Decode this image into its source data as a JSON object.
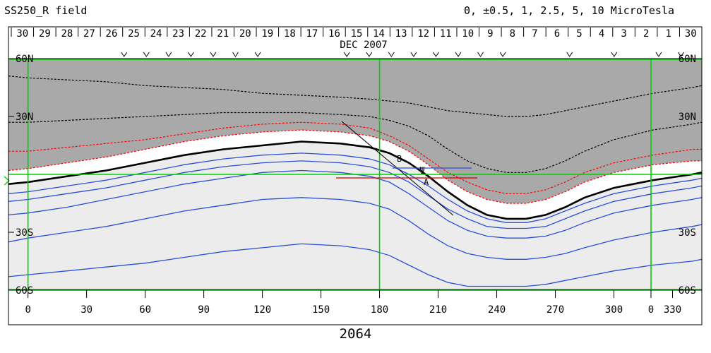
{
  "header": {
    "title": "SS250_R field",
    "contour_legend": "0, ±0.5, 1, 2.5, 5, 10 MicroTesla"
  },
  "chart_data": {
    "type": "line",
    "title": "SS250_R field",
    "month_label": "DEC 2007",
    "rotation_number": "2064",
    "day_ticks": [
      "30",
      "29",
      "28",
      "27",
      "26",
      "25",
      "24",
      "23",
      "22",
      "21",
      "20",
      "19",
      "18",
      "17",
      "16",
      "15",
      "14",
      "13",
      "12",
      "11",
      "10",
      "9",
      "8",
      "7",
      "6",
      "5",
      "4",
      "3",
      "2",
      "1",
      "30"
    ],
    "v_marks_day": [
      25,
      24,
      23,
      22,
      21,
      20,
      19,
      15,
      14,
      13,
      12,
      11,
      10,
      9,
      8,
      5,
      3,
      1,
      30
    ],
    "x_ticks": [
      "0",
      "30",
      "60",
      "90",
      "120",
      "150",
      "180",
      "210",
      "240",
      "270",
      "300",
      "330",
      "0"
    ],
    "xlim": [
      -10,
      345
    ],
    "ylim": [
      -60,
      60
    ],
    "lat_labels_left": [
      "60N",
      "30N",
      "30S",
      "60S"
    ],
    "lat_labels_right": [
      "60N",
      "30N",
      "30S",
      "60S"
    ],
    "lat_label_values": [
      60,
      30,
      -30,
      -60
    ],
    "colors": {
      "positive_region": "#a9a9a9",
      "negative_region": "#ececec",
      "neutral_line": "#000000",
      "positive_contour": "#ff0000",
      "negative_contour": "#2a4fd8",
      "grid": "#00d000"
    },
    "x_sample": [
      -10,
      0,
      20,
      40,
      60,
      80,
      100,
      120,
      140,
      160,
      175,
      185,
      195,
      205,
      215,
      225,
      235,
      245,
      255,
      265,
      275,
      285,
      300,
      320,
      340,
      345
    ],
    "series": [
      {
        "style": "neutral",
        "y": [
          -5,
          -4,
          -1,
          2,
          6,
          10,
          13,
          15,
          17,
          16,
          14,
          11,
          6,
          -1,
          -9,
          -16,
          -21,
          -23,
          -23,
          -21,
          -17,
          -12,
          -7,
          -3,
          0,
          1
        ]
      },
      {
        "style": "pos",
        "y": [
          2,
          3,
          6,
          9,
          13,
          17,
          20,
          22,
          23,
          22,
          20,
          17,
          12,
          5,
          -3,
          -9,
          -13,
          -15,
          -15,
          -13,
          -9,
          -4,
          1,
          5,
          7,
          7
        ]
      },
      {
        "style": "pos",
        "y": [
          12,
          12,
          14,
          16,
          18,
          21,
          24,
          26,
          27,
          26,
          24,
          20,
          15,
          8,
          1,
          -4,
          -8,
          -10,
          -10,
          -8,
          -4,
          1,
          6,
          10,
          13,
          13
        ]
      },
      {
        "style": "pos",
        "y": [
          51,
          50,
          49,
          48,
          46,
          45,
          44,
          42,
          41,
          40,
          39,
          38,
          37,
          35,
          33,
          32,
          31,
          30,
          30,
          31,
          33,
          35,
          38,
          42,
          45,
          46
        ]
      },
      {
        "style": "pos",
        "y": [
          27,
          27,
          28,
          29,
          30,
          31,
          32,
          32,
          32,
          31,
          30,
          28,
          25,
          20,
          13,
          7,
          3,
          1,
          1,
          3,
          7,
          12,
          18,
          23,
          26,
          27
        ]
      },
      {
        "style": "neg",
        "y": [
          -10,
          -9,
          -6,
          -3,
          1,
          5,
          8,
          10,
          11,
          10,
          8,
          5,
          0,
          -6,
          -13,
          -19,
          -23,
          -25,
          -25,
          -23,
          -19,
          -15,
          -10,
          -6,
          -3,
          -2
        ]
      },
      {
        "style": "neg",
        "y": [
          -14,
          -13,
          -10,
          -7,
          -3,
          1,
          4,
          6,
          7,
          6,
          4,
          1,
          -4,
          -11,
          -18,
          -23,
          -27,
          -28,
          -28,
          -27,
          -23,
          -19,
          -14,
          -10,
          -7,
          -6
        ]
      },
      {
        "style": "neg",
        "y": [
          -21,
          -20,
          -17,
          -13,
          -9,
          -5,
          -2,
          1,
          2,
          1,
          -1,
          -4,
          -10,
          -17,
          -24,
          -29,
          -32,
          -33,
          -33,
          -32,
          -29,
          -25,
          -20,
          -16,
          -13,
          -12
        ]
      },
      {
        "style": "neg",
        "y": [
          -35,
          -33,
          -30,
          -27,
          -23,
          -19,
          -16,
          -13,
          -12,
          -13,
          -15,
          -18,
          -24,
          -31,
          -37,
          -41,
          -43,
          -44,
          -44,
          -43,
          -41,
          -38,
          -34,
          -30,
          -27,
          -26
        ]
      },
      {
        "style": "neg",
        "y": [
          -53,
          -52,
          -50,
          -48,
          -46,
          -43,
          -40,
          -38,
          -36,
          -37,
          -39,
          -42,
          -47,
          -52,
          -56,
          -58,
          -58,
          -58,
          -58,
          -57,
          -55,
          -53,
          -50,
          -47,
          -45,
          -44
        ]
      }
    ],
    "annotations": [
      "B",
      "Ψ",
      "A"
    ]
  }
}
